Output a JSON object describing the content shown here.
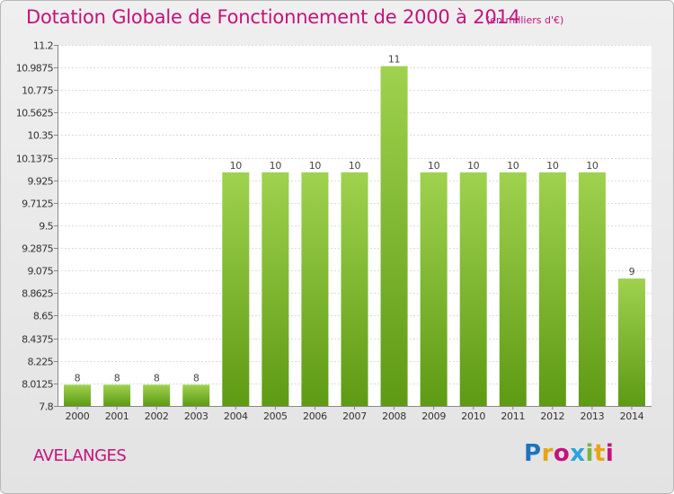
{
  "title": "Dotation Globale de Fonctionnement de 2000 à 2014",
  "unit_note": "(en milliers d'€)",
  "commune": "AVELANGES",
  "logo": {
    "text": "Proxiti",
    "letters": [
      {
        "ch": "P",
        "color": "#1e73be"
      },
      {
        "ch": "r",
        "color": "#e8a317"
      },
      {
        "ch": "o",
        "color": "#c5127b"
      },
      {
        "ch": "x",
        "color": "#2aa5d9"
      },
      {
        "ch": "i",
        "color": "#7cb342"
      },
      {
        "ch": "t",
        "color": "#e8a317"
      },
      {
        "ch": "i",
        "color": "#c5127b"
      }
    ]
  },
  "colors": {
    "title": "#c5127b",
    "bar_top": "#9fd24e",
    "bar_bottom": "#5e9a14",
    "plot_bg": "#ffffff",
    "grid": "#dcdcdc"
  },
  "chart_data": {
    "type": "bar",
    "title": "Dotation Globale de Fonctionnement de 2000 à 2014",
    "xlabel": "",
    "ylabel": "",
    "ylim": [
      7.8,
      11.2
    ],
    "grid": true,
    "yticks": [
      "11.2",
      "10.9875",
      "10.775",
      "10.5625",
      "10.35",
      "10.1375",
      "9.925",
      "9.7125",
      "9.5",
      "9.2875",
      "9.075",
      "8.8625",
      "8.65",
      "8.4375",
      "8.225",
      "8.0125",
      "7.8"
    ],
    "ytick_values": [
      11.2,
      10.9875,
      10.775,
      10.5625,
      10.35,
      10.1375,
      9.925,
      9.7125,
      9.5,
      9.2875,
      9.075,
      8.8625,
      8.65,
      8.4375,
      8.225,
      8.0125,
      7.8
    ],
    "categories": [
      "2000",
      "2001",
      "2002",
      "2003",
      "2004",
      "2005",
      "2006",
      "2007",
      "2008",
      "2009",
      "2010",
      "2011",
      "2012",
      "2013",
      "2014"
    ],
    "values": [
      8,
      8,
      8,
      8,
      10,
      10,
      10,
      10,
      11,
      10,
      10,
      10,
      10,
      10,
      9
    ],
    "labels": [
      "8",
      "8",
      "8",
      "8",
      "10",
      "10",
      "10",
      "10",
      "11",
      "10",
      "10",
      "10",
      "10",
      "10",
      "9"
    ]
  }
}
